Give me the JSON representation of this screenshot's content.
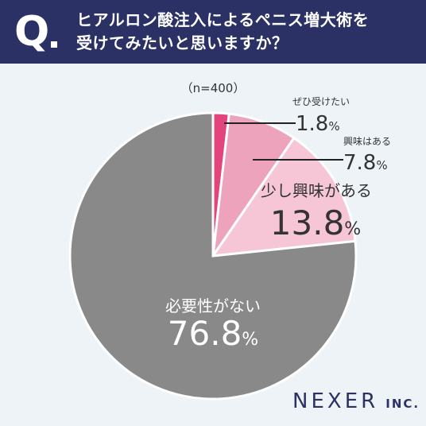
{
  "question": {
    "mark": "Q",
    "line1": "ヒアルロン酸注入によるペニス増大術を",
    "line2": "受けてみたいと思いますか？"
  },
  "colors": {
    "header_bg": "#2b3164",
    "background": "#eef3f8",
    "slice_dark_pink": "#e2457b",
    "slice_pink": "#eea3bd",
    "slice_light_pink": "#f6c6d6",
    "slice_gray": "#898989",
    "text_dark": "#333333",
    "brand": "#2b3164"
  },
  "brand": {
    "name": "NEXER",
    "suffix": "INC."
  },
  "chart_data": {
    "type": "pie",
    "sample_note": "（n=400）",
    "unit": "%",
    "slices": [
      {
        "label": "ぜひ受けたい",
        "value": 1.8,
        "display": "1.8",
        "color": "#e2457b"
      },
      {
        "label": "興味はある",
        "value": 7.8,
        "display": "7.8",
        "color": "#eea3bd"
      },
      {
        "label": "少し興味がある",
        "value": 13.8,
        "display": "13.8",
        "color": "#f6c6d6"
      },
      {
        "label": "必要性がない",
        "value": 76.8,
        "display": "76.8",
        "color": "#898989"
      }
    ]
  }
}
